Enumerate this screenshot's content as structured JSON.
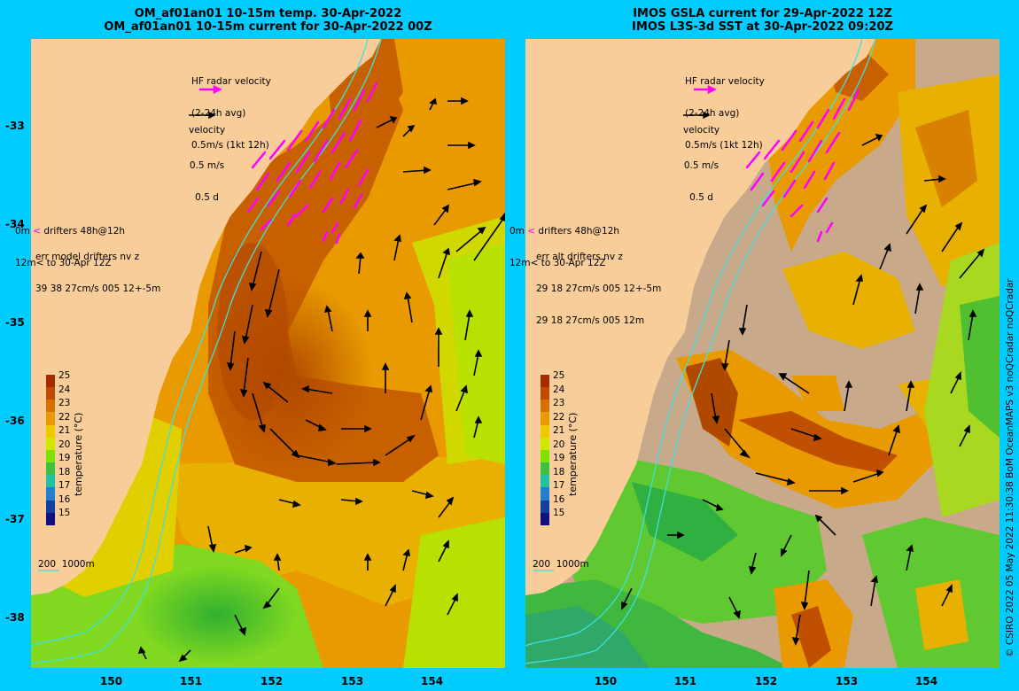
{
  "left": {
    "title1": "OM_af01an01 10-15m temp. 30-Apr-2022",
    "title2": "OM_af01an01 10-15m current for 30-Apr-2022 00Z",
    "hf_label": "HF radar velocity",
    "hf_avg": "(2-24h avg)",
    "hf_scale": "0.5m/s (1kt 12h)",
    "vel_label": "velocity",
    "vel_speed": "0.5 m/s",
    "vel_time": "0.5 d",
    "drifter_0m": "0m",
    "drifter_label": "drifters 48h@12h",
    "drifter_12m": "12m",
    "drifter_to": "to 30-Apr 12Z",
    "err1": "err model drifters nv z",
    "err2": "39 38 27cm/s 005 12+-5m",
    "err3": "",
    "contour_label": "200  1000m"
  },
  "right": {
    "title1": "IMOS GSLA current for 29-Apr-2022 12Z",
    "title2": "IMOS L3S-3d SST at 30-Apr-2022 09:20Z",
    "hf_label": "HF radar velocity",
    "hf_avg": "(2-24h avg)",
    "hf_scale": "0.5m/s (1kt 12h)",
    "vel_label": "velocity",
    "vel_speed": "0.5 m/s",
    "vel_time": "0.5 d",
    "drifter_0m": "0m",
    "drifter_label": "drifters 48h@12h",
    "drifter_12m": "12m",
    "drifter_to": "to 30-Apr 12Z",
    "err1": "err alt drifters nv z",
    "err2": "29 18 27cm/s 005 12+-5m",
    "err3": "29 18 27cm/s 005 12m",
    "contour_label": "200  1000m"
  },
  "lat_ticks": [
    "-33",
    "-34",
    "-35",
    "-36",
    "-37",
    "-38"
  ],
  "lon_ticks": [
    "150",
    "151",
    "152",
    "153",
    "154"
  ],
  "colorbar": {
    "labels": [
      "25",
      "24",
      "23",
      "22",
      "21",
      "20",
      "19",
      "18",
      "17",
      "16",
      "15"
    ],
    "title": "temperature (°C)",
    "colors": [
      "#a52a00",
      "#c04a00",
      "#d87000",
      "#e89a00",
      "#f0c800",
      "#d0e800",
      "#80e000",
      "#40c040",
      "#20c0a0",
      "#2080d0",
      "#1040a0",
      "#101080"
    ]
  },
  "credit": "© CSIRO 2022   05 May 2022 11:30:38 BoM OceanMAPS v3 noQCradar noQCradar",
  "colors": {
    "land": "#f8cd9a",
    "frame": "#00ccff",
    "missing": "#c8aa8a",
    "hf": "#ff00ff",
    "contour": "#40e0e0"
  }
}
